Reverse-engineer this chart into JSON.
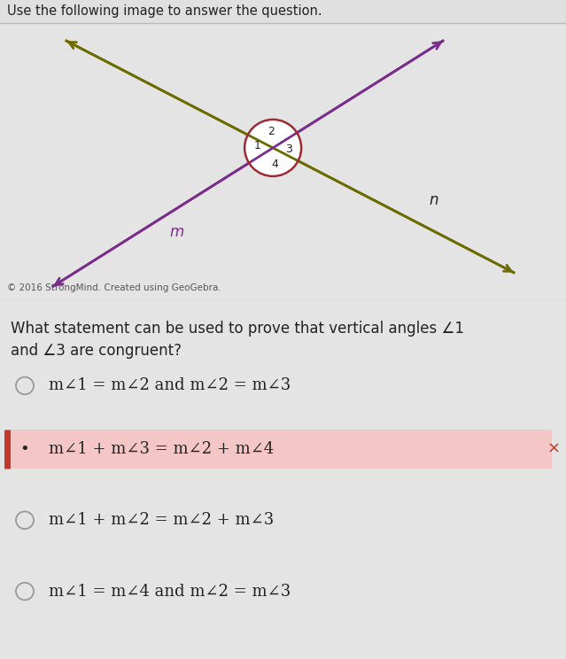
{
  "bg_color": "#e4e4e4",
  "white_bg": "#f0f0f0",
  "diagram_bg": "#f0f0f0",
  "title_text": "Use the following image to answer the question.",
  "copyright_text": "© 2016 StrongMind. Created using GeoGebra.",
  "question_line1": "What statement can be used to prove that vertical angles ∠1",
  "question_line2": "and ∠3 are congruent?",
  "options": [
    {
      "text": "m∠1 = m∠2 and m∠2 = m∠3",
      "selected": false
    },
    {
      "text": "m∠1 + m∠3 = m∠2 + m∠4",
      "selected": true,
      "correct": false
    },
    {
      "text": "m∠1 + m∠2 = m∠2 + m∠3",
      "selected": false
    },
    {
      "text": "m∠1 = m∠4 and m∠2 = m∠3",
      "selected": false
    }
  ],
  "line_m_color": "#7a2d8c",
  "line_n_color": "#6b6b00",
  "circle_color": "#9e2a35",
  "label_m": "m",
  "label_n": "n",
  "selected_bg": "#f5c6c6",
  "selected_border": "#c0392b",
  "x_mark_color": "#c0392b",
  "title_fontsize": 10.5,
  "option_fontsize": 13,
  "question_fontsize": 12,
  "radio_color": "#999999",
  "border_color": "#cccccc",
  "text_color": "#222222"
}
